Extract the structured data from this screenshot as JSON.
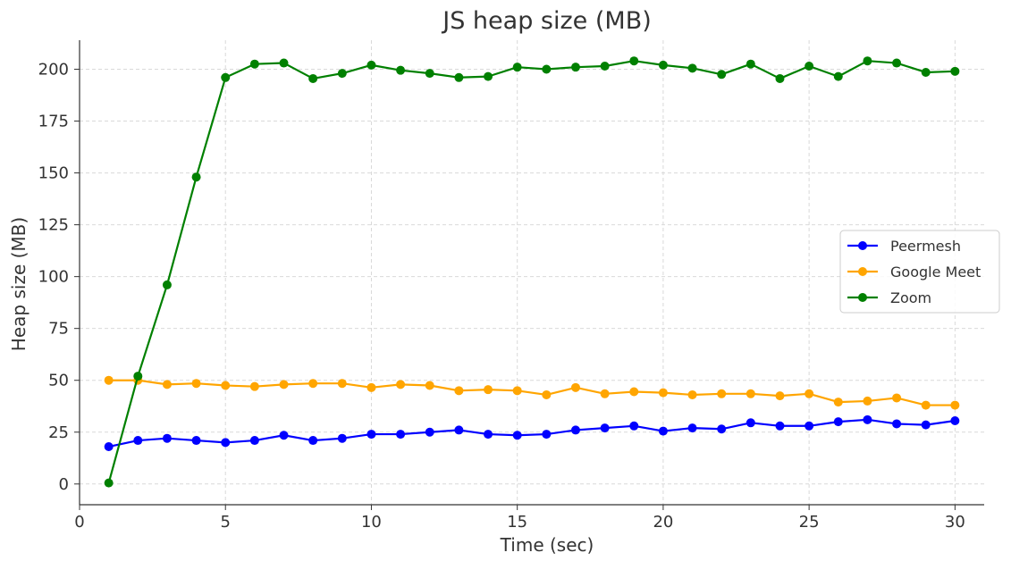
{
  "chart_data": {
    "type": "line",
    "title": "JS heap size (MB)",
    "xlabel": "Time (sec)",
    "ylabel": "Heap size (MB)",
    "xlim": [
      0,
      31
    ],
    "ylim": [
      -10,
      214
    ],
    "x_ticks": [
      "0",
      "5",
      "10",
      "15",
      "20",
      "25",
      "30"
    ],
    "y_ticks": [
      "0",
      "25",
      "50",
      "75",
      "100",
      "125",
      "150",
      "175",
      "200"
    ],
    "grid": true,
    "legend_position": "center-right",
    "x": [
      1,
      2,
      3,
      4,
      5,
      6,
      7,
      8,
      9,
      10,
      11,
      12,
      13,
      14,
      15,
      16,
      17,
      18,
      19,
      20,
      21,
      22,
      23,
      24,
      25,
      26,
      27,
      28,
      29,
      30
    ],
    "series": [
      {
        "name": "Peermesh",
        "color": "#0000ff",
        "values": [
          18,
          21,
          22,
          21,
          20,
          21,
          23.5,
          21,
          22,
          24,
          24,
          25,
          26,
          24,
          23.5,
          24,
          26,
          27,
          28,
          25.5,
          27,
          26.5,
          29.5,
          28,
          28,
          30,
          31,
          29,
          28.5,
          30.5
        ]
      },
      {
        "name": "Google Meet",
        "color": "#ffa500",
        "values": [
          50,
          50,
          48,
          48.5,
          47.5,
          47,
          48,
          48.5,
          48.5,
          46.5,
          48,
          47.5,
          45,
          45.5,
          45,
          43,
          46.5,
          43.5,
          44.5,
          44,
          43,
          43.5,
          43.5,
          42.5,
          43.5,
          39.5,
          40,
          41.5,
          38,
          38
        ]
      },
      {
        "name": "Zoom",
        "color": "#008000",
        "values": [
          0.5,
          52,
          96,
          148,
          196,
          202.5,
          203,
          195.5,
          198,
          202,
          199.5,
          198,
          196,
          196.5,
          201,
          200,
          201,
          201.5,
          204,
          202,
          200.5,
          197.5,
          202.5,
          195.5,
          201.5,
          196.5,
          204,
          203,
          198.5,
          199
        ]
      }
    ]
  }
}
